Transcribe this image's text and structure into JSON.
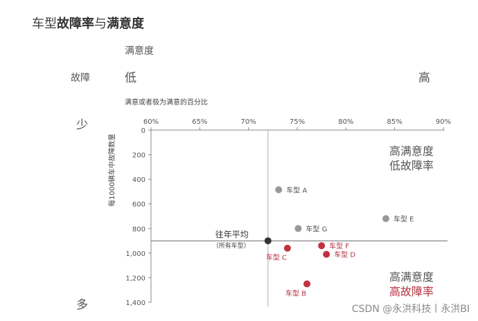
{
  "title_part1": "车型",
  "title_part2": "故障率",
  "title_part3": "与",
  "title_part4": "满意度",
  "satisfaction_label": "满意度",
  "low_label": "低",
  "high_label": "高",
  "fault_label": "故障",
  "few_label": "少",
  "many_label": "多",
  "x_axis_desc": "满意或者极为满意的百分比",
  "quad_top_line1": "高满意度",
  "quad_top_line2": "低故障率",
  "quad_bottom_line1": "高满意度",
  "quad_bottom_line2": "高故障率",
  "watermark": "CSDN @永洪科技丨永洪BI",
  "colors": {
    "gray": "#999999",
    "red": "#c0323f",
    "avg": "#333333",
    "axis": "#888888"
  },
  "chart_data": {
    "type": "scatter",
    "xlabel": "满意或者极为满意的百分比",
    "ylabel": "每1000辆车中故障数量",
    "x_ticks": [
      "60%",
      "65%",
      "70%",
      "75%",
      "80%",
      "85%",
      "90%"
    ],
    "y_ticks": [
      "0",
      "200",
      "400",
      "600",
      "800",
      "1,000",
      "1,200",
      "1,400"
    ],
    "xlim": [
      60,
      90
    ],
    "ylim": [
      0,
      1400
    ],
    "y_inverted": true,
    "average": {
      "label": "往年平均",
      "sublabel": "（所有车型）",
      "x": 72,
      "y": 900
    },
    "points": [
      {
        "label": "车型 A",
        "x": 73.1,
        "y": 485,
        "group": "gray",
        "label_pos": "right"
      },
      {
        "label": "车型 E",
        "x": 84.1,
        "y": 720,
        "group": "gray",
        "label_pos": "right"
      },
      {
        "label": "车型 G",
        "x": 75.1,
        "y": 800,
        "group": "gray",
        "label_pos": "right"
      },
      {
        "label": "车型 F",
        "x": 77.5,
        "y": 940,
        "group": "red",
        "label_pos": "right"
      },
      {
        "label": "车型 C",
        "x": 74.0,
        "y": 960,
        "group": "red",
        "label_pos": "below"
      },
      {
        "label": "车型 D",
        "x": 78.0,
        "y": 1010,
        "group": "red",
        "label_pos": "right"
      },
      {
        "label": "车型 B",
        "x": 76.0,
        "y": 1250,
        "group": "red",
        "label_pos": "below"
      }
    ]
  }
}
